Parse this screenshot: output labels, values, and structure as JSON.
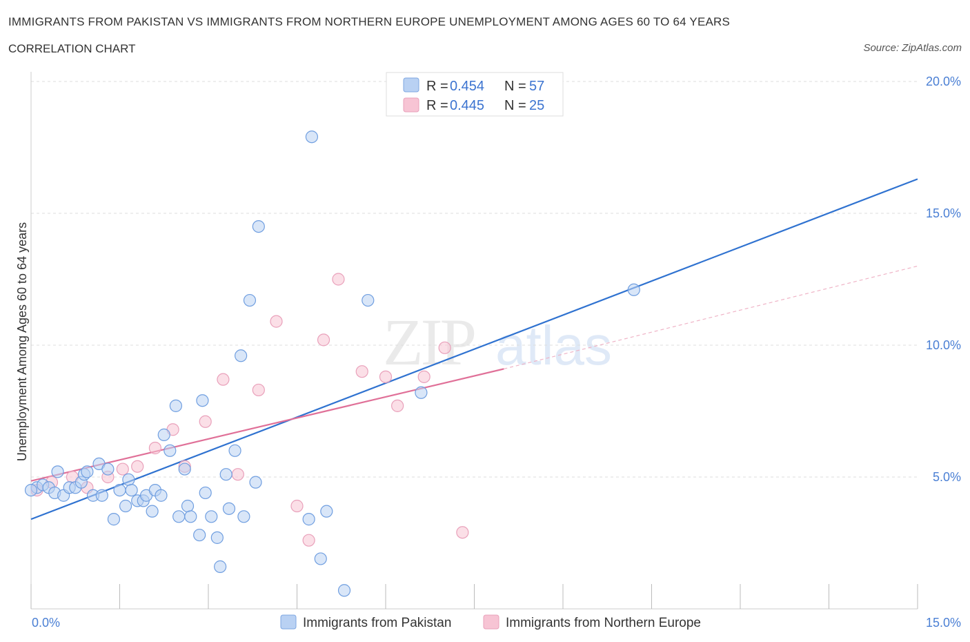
{
  "header": {
    "title": "IMMIGRANTS FROM PAKISTAN VS IMMIGRANTS FROM NORTHERN EUROPE UNEMPLOYMENT AMONG AGES 60 TO 64 YEARS",
    "subtitle": "CORRELATION CHART",
    "source": "Source: ZipAtlas.com"
  },
  "colors": {
    "pakistan": "#4a7fd4",
    "pakistan_fill": "#b9d1f3",
    "northern_europe": "#e07098",
    "northern_europe_fill": "#f7c4d4",
    "grid": "#dddddd",
    "axis_label": "#4a7fd4"
  },
  "legend": {
    "rows": [
      {
        "r_label": "R =",
        "r_value": "0.454",
        "n_label": "N =",
        "n_value": "57"
      },
      {
        "r_label": "R =",
        "r_value": "0.445",
        "n_label": "N =",
        "n_value": "25"
      }
    ]
  },
  "bottom_legend": {
    "items": [
      "Immigrants from Pakistan",
      "Immigrants from Northern Europe"
    ]
  },
  "chart_data": {
    "type": "scatter",
    "title": "IMMIGRANTS FROM PAKISTAN VS IMMIGRANTS FROM NORTHERN EUROPE UNEMPLOYMENT AMONG AGES 60 TO 64 YEARS",
    "xlabel": "",
    "ylabel": "Unemployment Among Ages 60 to 64 years",
    "xlim": [
      0,
      15
    ],
    "ylim": [
      0,
      20
    ],
    "x_tick_labels": [
      "0.0%",
      "15.0%"
    ],
    "y_ticks": [
      5,
      10,
      15,
      20
    ],
    "y_tick_labels": [
      "5.0%",
      "10.0%",
      "15.0%",
      "20.0%"
    ],
    "grid": true,
    "legend_position": "top-center",
    "watermark": "ZIPatlas",
    "series": [
      {
        "name": "Immigrants from Pakistan",
        "R": 0.454,
        "N": 57,
        "trend": {
          "x0": 0,
          "y0": 3.4,
          "x1": 15,
          "y1": 16.3
        },
        "points": [
          [
            0.1,
            4.6
          ],
          [
            0.2,
            4.7
          ],
          [
            0.3,
            4.6
          ],
          [
            0.4,
            4.4
          ],
          [
            0.45,
            5.2
          ],
          [
            0.55,
            4.3
          ],
          [
            0.65,
            4.6
          ],
          [
            0.75,
            4.6
          ],
          [
            0.85,
            4.8
          ],
          [
            0.9,
            5.1
          ],
          [
            0.95,
            5.2
          ],
          [
            1.05,
            4.3
          ],
          [
            1.15,
            5.5
          ],
          [
            1.2,
            4.3
          ],
          [
            1.3,
            5.3
          ],
          [
            1.4,
            3.4
          ],
          [
            1.5,
            4.5
          ],
          [
            1.6,
            3.9
          ],
          [
            1.65,
            4.9
          ],
          [
            1.7,
            4.5
          ],
          [
            1.8,
            4.1
          ],
          [
            1.9,
            4.1
          ],
          [
            1.95,
            4.3
          ],
          [
            2.05,
            3.7
          ],
          [
            2.1,
            4.5
          ],
          [
            2.2,
            4.3
          ],
          [
            2.25,
            6.6
          ],
          [
            2.35,
            6.0
          ],
          [
            2.45,
            7.7
          ],
          [
            2.5,
            3.5
          ],
          [
            2.6,
            5.3
          ],
          [
            2.65,
            3.9
          ],
          [
            2.7,
            3.5
          ],
          [
            2.85,
            2.8
          ],
          [
            2.9,
            7.9
          ],
          [
            2.95,
            4.4
          ],
          [
            3.05,
            3.5
          ],
          [
            3.15,
            2.7
          ],
          [
            3.2,
            1.6
          ],
          [
            3.3,
            5.1
          ],
          [
            3.35,
            3.8
          ],
          [
            3.45,
            6.0
          ],
          [
            3.55,
            9.6
          ],
          [
            3.6,
            3.5
          ],
          [
            3.7,
            11.7
          ],
          [
            3.8,
            4.8
          ],
          [
            3.85,
            14.5
          ],
          [
            4.7,
            3.4
          ],
          [
            4.75,
            17.9
          ],
          [
            4.9,
            1.9
          ],
          [
            5.0,
            3.7
          ],
          [
            5.3,
            0.7
          ],
          [
            5.7,
            11.7
          ],
          [
            6.2,
            20.0
          ],
          [
            6.6,
            8.2
          ],
          [
            10.2,
            12.1
          ],
          [
            0.0,
            4.5
          ]
        ]
      },
      {
        "name": "Immigrants from Northern Europe",
        "R": 0.445,
        "N": 25,
        "trend": {
          "x0": 0,
          "y0": 4.85,
          "x1": 8.0,
          "y1": 9.1
        },
        "trend_extension": {
          "x0": 8.0,
          "y0": 9.1,
          "x1": 15,
          "y1": 13.0
        },
        "points": [
          [
            0.1,
            4.5
          ],
          [
            0.35,
            4.8
          ],
          [
            0.7,
            5.0
          ],
          [
            0.95,
            4.6
          ],
          [
            1.3,
            5.0
          ],
          [
            1.55,
            5.3
          ],
          [
            1.8,
            5.4
          ],
          [
            2.1,
            6.1
          ],
          [
            2.4,
            6.8
          ],
          [
            2.6,
            5.4
          ],
          [
            2.95,
            7.1
          ],
          [
            3.25,
            8.7
          ],
          [
            3.5,
            5.1
          ],
          [
            3.85,
            8.3
          ],
          [
            4.15,
            10.9
          ],
          [
            4.5,
            3.9
          ],
          [
            4.7,
            2.6
          ],
          [
            4.95,
            10.2
          ],
          [
            5.2,
            12.5
          ],
          [
            5.6,
            9.0
          ],
          [
            6.0,
            8.8
          ],
          [
            6.2,
            7.7
          ],
          [
            6.65,
            8.8
          ],
          [
            7.0,
            9.9
          ],
          [
            7.3,
            2.9
          ]
        ]
      }
    ]
  }
}
